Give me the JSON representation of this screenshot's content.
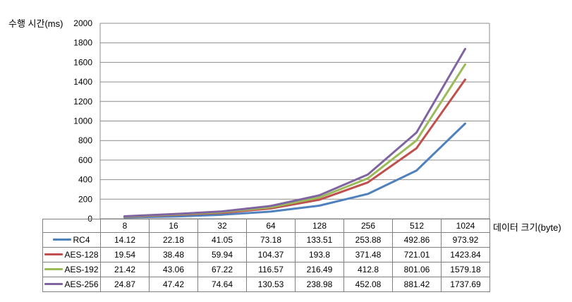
{
  "chart_data": {
    "type": "line",
    "title": "",
    "ylabel": "수행 시간(ms)",
    "xlabel": "데이터 크기(byte)",
    "categories": [
      "8",
      "16",
      "32",
      "64",
      "128",
      "256",
      "512",
      "1024"
    ],
    "series": [
      {
        "name": "RC4",
        "color": "#4F81BD",
        "values": [
          14.12,
          22.18,
          41.05,
          73.18,
          133.51,
          253.88,
          492.86,
          973.92
        ]
      },
      {
        "name": "AES-128",
        "color": "#C0504D",
        "values": [
          19.54,
          38.48,
          59.94,
          104.37,
          193.8,
          371.48,
          721.01,
          1423.84
        ]
      },
      {
        "name": "AES-192",
        "color": "#9BBB59",
        "values": [
          21.42,
          43.06,
          67.22,
          116.57,
          216.49,
          412.8,
          801.06,
          1579.18
        ]
      },
      {
        "name": "AES-256",
        "color": "#8064A2",
        "values": [
          24.87,
          47.42,
          74.64,
          130.53,
          238.98,
          452.08,
          881.42,
          1737.69
        ]
      }
    ],
    "ylim": [
      0,
      2000
    ],
    "ytick_step": 200,
    "grid": true,
    "legend_position": "table-left",
    "gridline_color": "#8C8C8C",
    "table_border_color": "#808080",
    "text_color": "#000000",
    "background_color": "#FFFFFF"
  }
}
